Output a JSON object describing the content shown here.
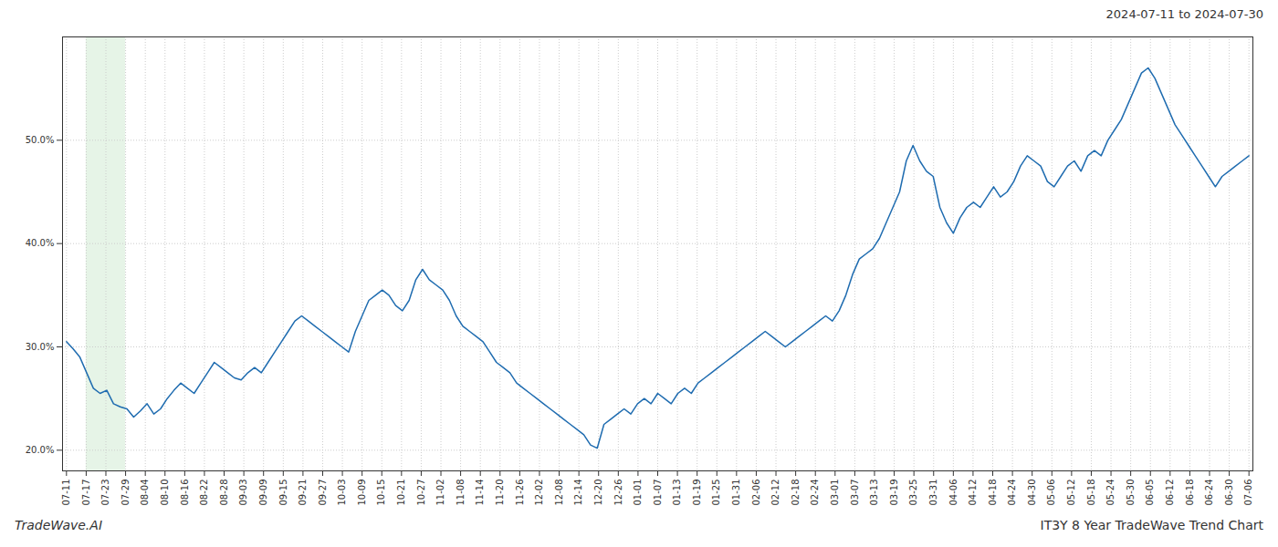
{
  "chart_data": {
    "type": "line",
    "title": "IT3Y 8 Year TradeWave Trend Chart",
    "subtitle": "2024-07-11 to 2024-07-30",
    "annotations": [
      "TradeWave.AI"
    ],
    "color": "#1f6cb0",
    "grid": true,
    "xlim": [
      -0.2,
      60.2
    ],
    "xticks": [
      {
        "value": 0,
        "label": "07-11"
      },
      {
        "value": 1,
        "label": "07-17"
      },
      {
        "value": 2,
        "label": "07-23"
      },
      {
        "value": 3,
        "label": "07-29"
      },
      {
        "value": 4,
        "label": "08-04"
      },
      {
        "value": 5,
        "label": "08-10"
      },
      {
        "value": 6,
        "label": "08-16"
      },
      {
        "value": 7,
        "label": "08-22"
      },
      {
        "value": 8,
        "label": "08-28"
      },
      {
        "value": 9,
        "label": "09-03"
      },
      {
        "value": 10,
        "label": "09-09"
      },
      {
        "value": 11,
        "label": "09-15"
      },
      {
        "value": 12,
        "label": "09-21"
      },
      {
        "value": 13,
        "label": "09-27"
      },
      {
        "value": 14,
        "label": "10-03"
      },
      {
        "value": 15,
        "label": "10-09"
      },
      {
        "value": 16,
        "label": "10-15"
      },
      {
        "value": 17,
        "label": "10-21"
      },
      {
        "value": 18,
        "label": "10-27"
      },
      {
        "value": 19,
        "label": "11-02"
      },
      {
        "value": 20,
        "label": "11-08"
      },
      {
        "value": 21,
        "label": "11-14"
      },
      {
        "value": 22,
        "label": "11-20"
      },
      {
        "value": 23,
        "label": "11-26"
      },
      {
        "value": 24,
        "label": "12-02"
      },
      {
        "value": 25,
        "label": "12-08"
      },
      {
        "value": 26,
        "label": "12-14"
      },
      {
        "value": 27,
        "label": "12-20"
      },
      {
        "value": 28,
        "label": "12-26"
      },
      {
        "value": 29,
        "label": "01-01"
      },
      {
        "value": 30,
        "label": "01-07"
      },
      {
        "value": 31,
        "label": "01-13"
      },
      {
        "value": 32,
        "label": "01-19"
      },
      {
        "value": 33,
        "label": "01-25"
      },
      {
        "value": 34,
        "label": "01-31"
      },
      {
        "value": 35,
        "label": "02-06"
      },
      {
        "value": 36,
        "label": "02-12"
      },
      {
        "value": 37,
        "label": "02-18"
      },
      {
        "value": 38,
        "label": "02-24"
      },
      {
        "value": 39,
        "label": "03-01"
      },
      {
        "value": 40,
        "label": "03-07"
      },
      {
        "value": 41,
        "label": "03-13"
      },
      {
        "value": 42,
        "label": "03-19"
      },
      {
        "value": 43,
        "label": "03-25"
      },
      {
        "value": 44,
        "label": "03-31"
      },
      {
        "value": 45,
        "label": "04-06"
      },
      {
        "value": 46,
        "label": "04-12"
      },
      {
        "value": 47,
        "label": "04-18"
      },
      {
        "value": 48,
        "label": "04-24"
      },
      {
        "value": 49,
        "label": "04-30"
      },
      {
        "value": 50,
        "label": "05-06"
      },
      {
        "value": 51,
        "label": "05-12"
      },
      {
        "value": 52,
        "label": "05-18"
      },
      {
        "value": 53,
        "label": "05-24"
      },
      {
        "value": 54,
        "label": "05-30"
      },
      {
        "value": 55,
        "label": "06-05"
      },
      {
        "value": 56,
        "label": "06-12"
      },
      {
        "value": 57,
        "label": "06-18"
      },
      {
        "value": 58,
        "label": "06-24"
      },
      {
        "value": 59,
        "label": "06-30"
      },
      {
        "value": 60,
        "label": "07-06"
      }
    ],
    "ylim": [
      18.0,
      60.0
    ],
    "yticks": [
      {
        "value": 20.0,
        "label": "20.0%"
      },
      {
        "value": 30.0,
        "label": "30.0%"
      },
      {
        "value": 40.0,
        "label": "40.0%"
      },
      {
        "value": 50.0,
        "label": "50.0%"
      }
    ],
    "shaded": {
      "start": "07-17",
      "end": "07-29",
      "color": "#c8e6c9"
    },
    "values": [
      30.5,
      29.8,
      29.0,
      27.5,
      26.0,
      25.5,
      25.8,
      24.5,
      24.2,
      24.0,
      23.2,
      23.8,
      24.5,
      23.5,
      24.0,
      25.0,
      25.8,
      26.5,
      26.0,
      25.5,
      26.5,
      27.5,
      28.5,
      28.0,
      27.5,
      27.0,
      26.8,
      27.5,
      28.0,
      27.5,
      28.5,
      29.5,
      30.5,
      31.5,
      32.5,
      33.0,
      32.5,
      32.0,
      31.5,
      31.0,
      30.5,
      30.0,
      29.5,
      31.5,
      33.0,
      34.5,
      35.0,
      35.5,
      35.0,
      34.0,
      33.5,
      34.5,
      36.5,
      37.5,
      36.5,
      36.0,
      35.5,
      34.5,
      33.0,
      32.0,
      31.5,
      31.0,
      30.5,
      29.5,
      28.5,
      28.0,
      27.5,
      26.5,
      26.0,
      25.5,
      25.0,
      24.5,
      24.0,
      23.5,
      23.0,
      22.5,
      22.0,
      21.5,
      20.5,
      20.2,
      22.5,
      23.0,
      23.5,
      24.0,
      23.5,
      24.5,
      25.0,
      24.5,
      25.5,
      25.0,
      24.5,
      25.5,
      26.0,
      25.5,
      26.5,
      27.0,
      27.5,
      28.0,
      28.5,
      29.0,
      29.5,
      30.0,
      30.5,
      31.0,
      31.5,
      31.0,
      30.5,
      30.0,
      30.5,
      31.0,
      31.5,
      32.0,
      32.5,
      33.0,
      32.5,
      33.5,
      35.0,
      37.0,
      38.5,
      39.0,
      39.5,
      40.5,
      42.0,
      43.5,
      45.0,
      48.0,
      49.5,
      48.0,
      47.0,
      46.5,
      43.5,
      42.0,
      41.0,
      42.5,
      43.5,
      44.0,
      43.5,
      44.5,
      45.5,
      44.5,
      45.0,
      46.0,
      47.5,
      48.5,
      48.0,
      47.5,
      46.0,
      45.5,
      46.5,
      47.5,
      48.0,
      47.0,
      48.5,
      49.0,
      48.5,
      50.0,
      51.0,
      52.0,
      53.5,
      55.0,
      56.5,
      57.0,
      56.0,
      54.5,
      53.0,
      51.5,
      50.5,
      49.5,
      48.5,
      47.5,
      46.5,
      45.5,
      46.5,
      47.0,
      47.5,
      48.0,
      48.5
    ]
  }
}
